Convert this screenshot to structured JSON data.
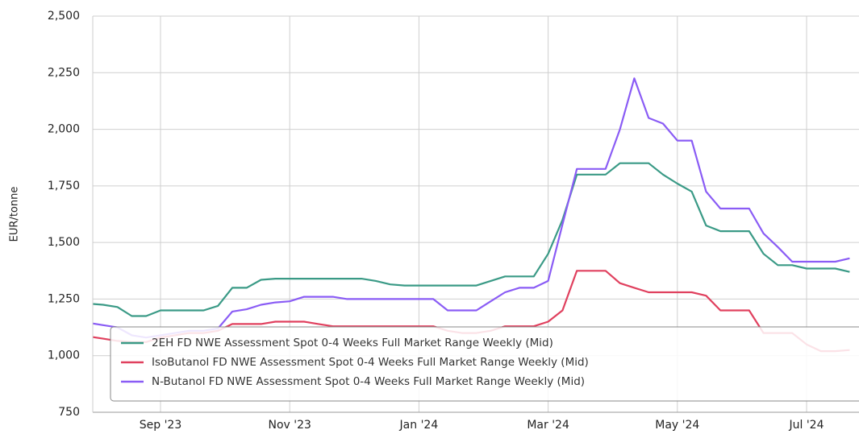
{
  "chart_data": {
    "type": "line",
    "ylabel": "EUR/tonne",
    "categories": [
      null,
      null,
      null,
      null,
      null,
      "Sep '23",
      null,
      null,
      null,
      null,
      null,
      null,
      null,
      null,
      "Nov '23",
      null,
      null,
      null,
      null,
      null,
      null,
      null,
      null,
      "Jan '24",
      null,
      null,
      null,
      null,
      null,
      null,
      null,
      null,
      "Mar '24",
      null,
      null,
      null,
      null,
      null,
      null,
      null,
      null,
      "May '24",
      null,
      null,
      null,
      null,
      null,
      null,
      null,
      null,
      "Jul '24",
      null,
      null,
      null
    ],
    "series": [
      {
        "name": "2EH FD NWE Assessment Spot 0-4 Weeks Full Market Range Weekly (Mid)",
        "color": "#3a9a86",
        "values": [
          1230,
          1225,
          1215,
          1175,
          1175,
          1200,
          1200,
          1200,
          1200,
          1220,
          1300,
          1300,
          1335,
          1340,
          1340,
          1340,
          1340,
          1340,
          1340,
          1340,
          1330,
          1315,
          1310,
          1310,
          1310,
          1310,
          1310,
          1310,
          1330,
          1350,
          1350,
          1350,
          1450,
          1600,
          1800,
          1800,
          1800,
          1850,
          1850,
          1850,
          1800,
          1760,
          1725,
          1575,
          1550,
          1550,
          1550,
          1450,
          1400,
          1400,
          1385,
          1385,
          1385,
          1370
        ]
      },
      {
        "name": "IsoButanol FD NWE Assessment Spot 0-4 Weeks Full Market Range Weekly (Mid)",
        "color": "#e0405e",
        "values": [
          1085,
          1075,
          1065,
          1060,
          1060,
          1080,
          1090,
          1100,
          1100,
          1110,
          1140,
          1140,
          1140,
          1150,
          1150,
          1150,
          1140,
          1130,
          1130,
          1130,
          1130,
          1130,
          1130,
          1130,
          1130,
          1110,
          1100,
          1100,
          1110,
          1130,
          1130,
          1130,
          1150,
          1200,
          1375,
          1375,
          1375,
          1320,
          1300,
          1280,
          1280,
          1280,
          1280,
          1265,
          1200,
          1200,
          1200,
          1100,
          1100,
          1100,
          1050,
          1020,
          1020,
          1025
        ]
      },
      {
        "name": "N-Butanol FD NWE Assessment Spot 0-4 Weeks Full Market Range Weekly (Mid)",
        "color": "#8a5cf5",
        "values": [
          1145,
          1135,
          1125,
          1090,
          1080,
          1090,
          1100,
          1110,
          1110,
          1120,
          1195,
          1205,
          1225,
          1235,
          1240,
          1260,
          1260,
          1260,
          1250,
          1250,
          1250,
          1250,
          1250,
          1250,
          1250,
          1200,
          1200,
          1200,
          1240,
          1280,
          1300,
          1300,
          1330,
          1580,
          1825,
          1825,
          1825,
          2000,
          2225,
          2050,
          2025,
          1950,
          1950,
          1725,
          1650,
          1650,
          1650,
          1540,
          1480,
          1415,
          1415,
          1415,
          1415,
          1430
        ]
      }
    ],
    "ylim": [
      750,
      2500
    ],
    "yticks": [
      750,
      {
        "value": 1000,
        "label": "1,000"
      },
      {
        "value": 1250,
        "label": "1,250"
      },
      {
        "value": 1500,
        "label": "1,500"
      },
      {
        "value": 1750,
        "label": "1,750"
      },
      {
        "value": 2000,
        "label": "2,000"
      },
      {
        "value": 2250,
        "label": "2,250"
      },
      {
        "value": 2500,
        "label": "2,500"
      }
    ],
    "grid": true
  }
}
